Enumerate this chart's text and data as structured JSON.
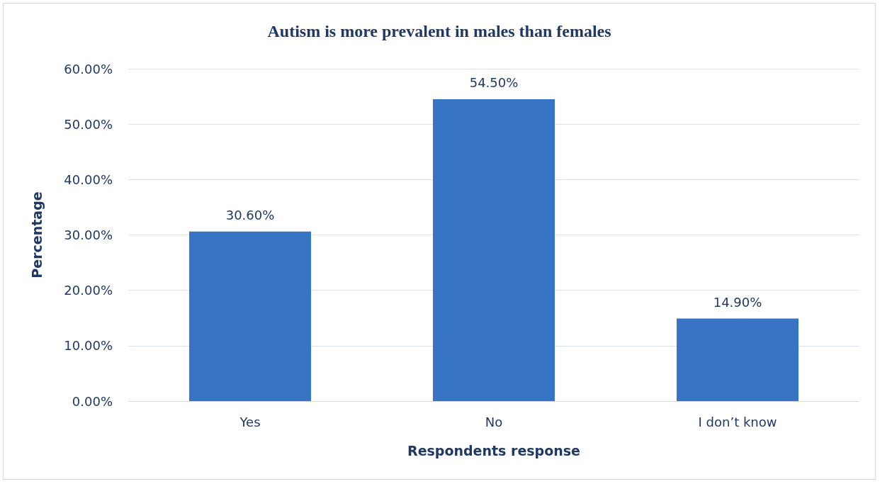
{
  "chart_data": {
    "type": "bar",
    "title": "Autism is more prevalent in males than females",
    "xlabel": "Respondents response",
    "ylabel": "Percentage",
    "categories": [
      "Yes",
      "No",
      "I don’t know"
    ],
    "values": [
      30.6,
      54.5,
      14.9
    ],
    "value_labels": [
      "30.60%",
      "54.50%",
      "14.90%"
    ],
    "color": "#3874c4",
    "ylim": [
      0,
      60
    ],
    "yticks": [
      {
        "value": 0,
        "label": "0.00%"
      },
      {
        "value": 10,
        "label": "10.00%"
      },
      {
        "value": 20,
        "label": "20.00%"
      },
      {
        "value": 30,
        "label": "30.00%"
      },
      {
        "value": 40,
        "label": "40.00%"
      },
      {
        "value": 50,
        "label": "50.00%"
      },
      {
        "value": 60,
        "label": "60.00%"
      }
    ],
    "grid": true
  }
}
